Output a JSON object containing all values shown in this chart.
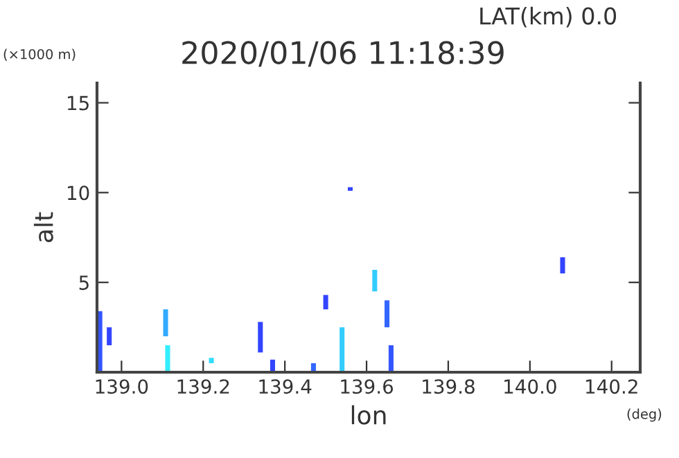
{
  "chart_data": {
    "type": "bar",
    "title": "2020/01/06 11:18:39",
    "subtitle": "LAT(km) 0.0",
    "xlabel": "lon",
    "ylabel": "alt",
    "annotations": [
      "(×1000 m)",
      "(deg)"
    ],
    "x": [
      138.947,
      138.97,
      139.108,
      139.113,
      139.22,
      139.34,
      139.37,
      139.47,
      139.5,
      139.54,
      139.56,
      139.62,
      139.65,
      139.66,
      140.08
    ],
    "base": [
      0,
      1.5,
      2.0,
      0,
      0.5,
      1.1,
      0,
      0,
      3.5,
      0,
      10.1,
      4.5,
      2.5,
      0,
      5.5
    ],
    "values": [
      3.4,
      1.0,
      1.5,
      1.5,
      0.3,
      1.7,
      0.7,
      0.5,
      0.8,
      2.5,
      0.2,
      1.2,
      1.5,
      1.5,
      0.9
    ],
    "colors": [
      "#3355ff",
      "#3344ff",
      "#33aaff",
      "#33eeff",
      "#33ddff",
      "#3344ff",
      "#3344ff",
      "#3366ff",
      "#3344ff",
      "#33ccff",
      "#3344ff",
      "#33ccff",
      "#3366ff",
      "#3355ff",
      "#3344ff"
    ],
    "xlim": [
      138.94,
      140.27
    ],
    "ylim": [
      0,
      16.1
    ],
    "xticks": [
      {
        "value": 139.0,
        "label": "139.0"
      },
      {
        "value": 139.2,
        "label": "139.2"
      },
      {
        "value": 139.4,
        "label": "139.4"
      },
      {
        "value": 139.6,
        "label": "139.6"
      },
      {
        "value": 139.8,
        "label": "139.8"
      },
      {
        "value": 140.0,
        "label": "140.0"
      },
      {
        "value": 140.2,
        "label": "140.2"
      }
    ],
    "yticks": [
      5,
      10,
      15
    ],
    "grid": false,
    "legend": false
  }
}
